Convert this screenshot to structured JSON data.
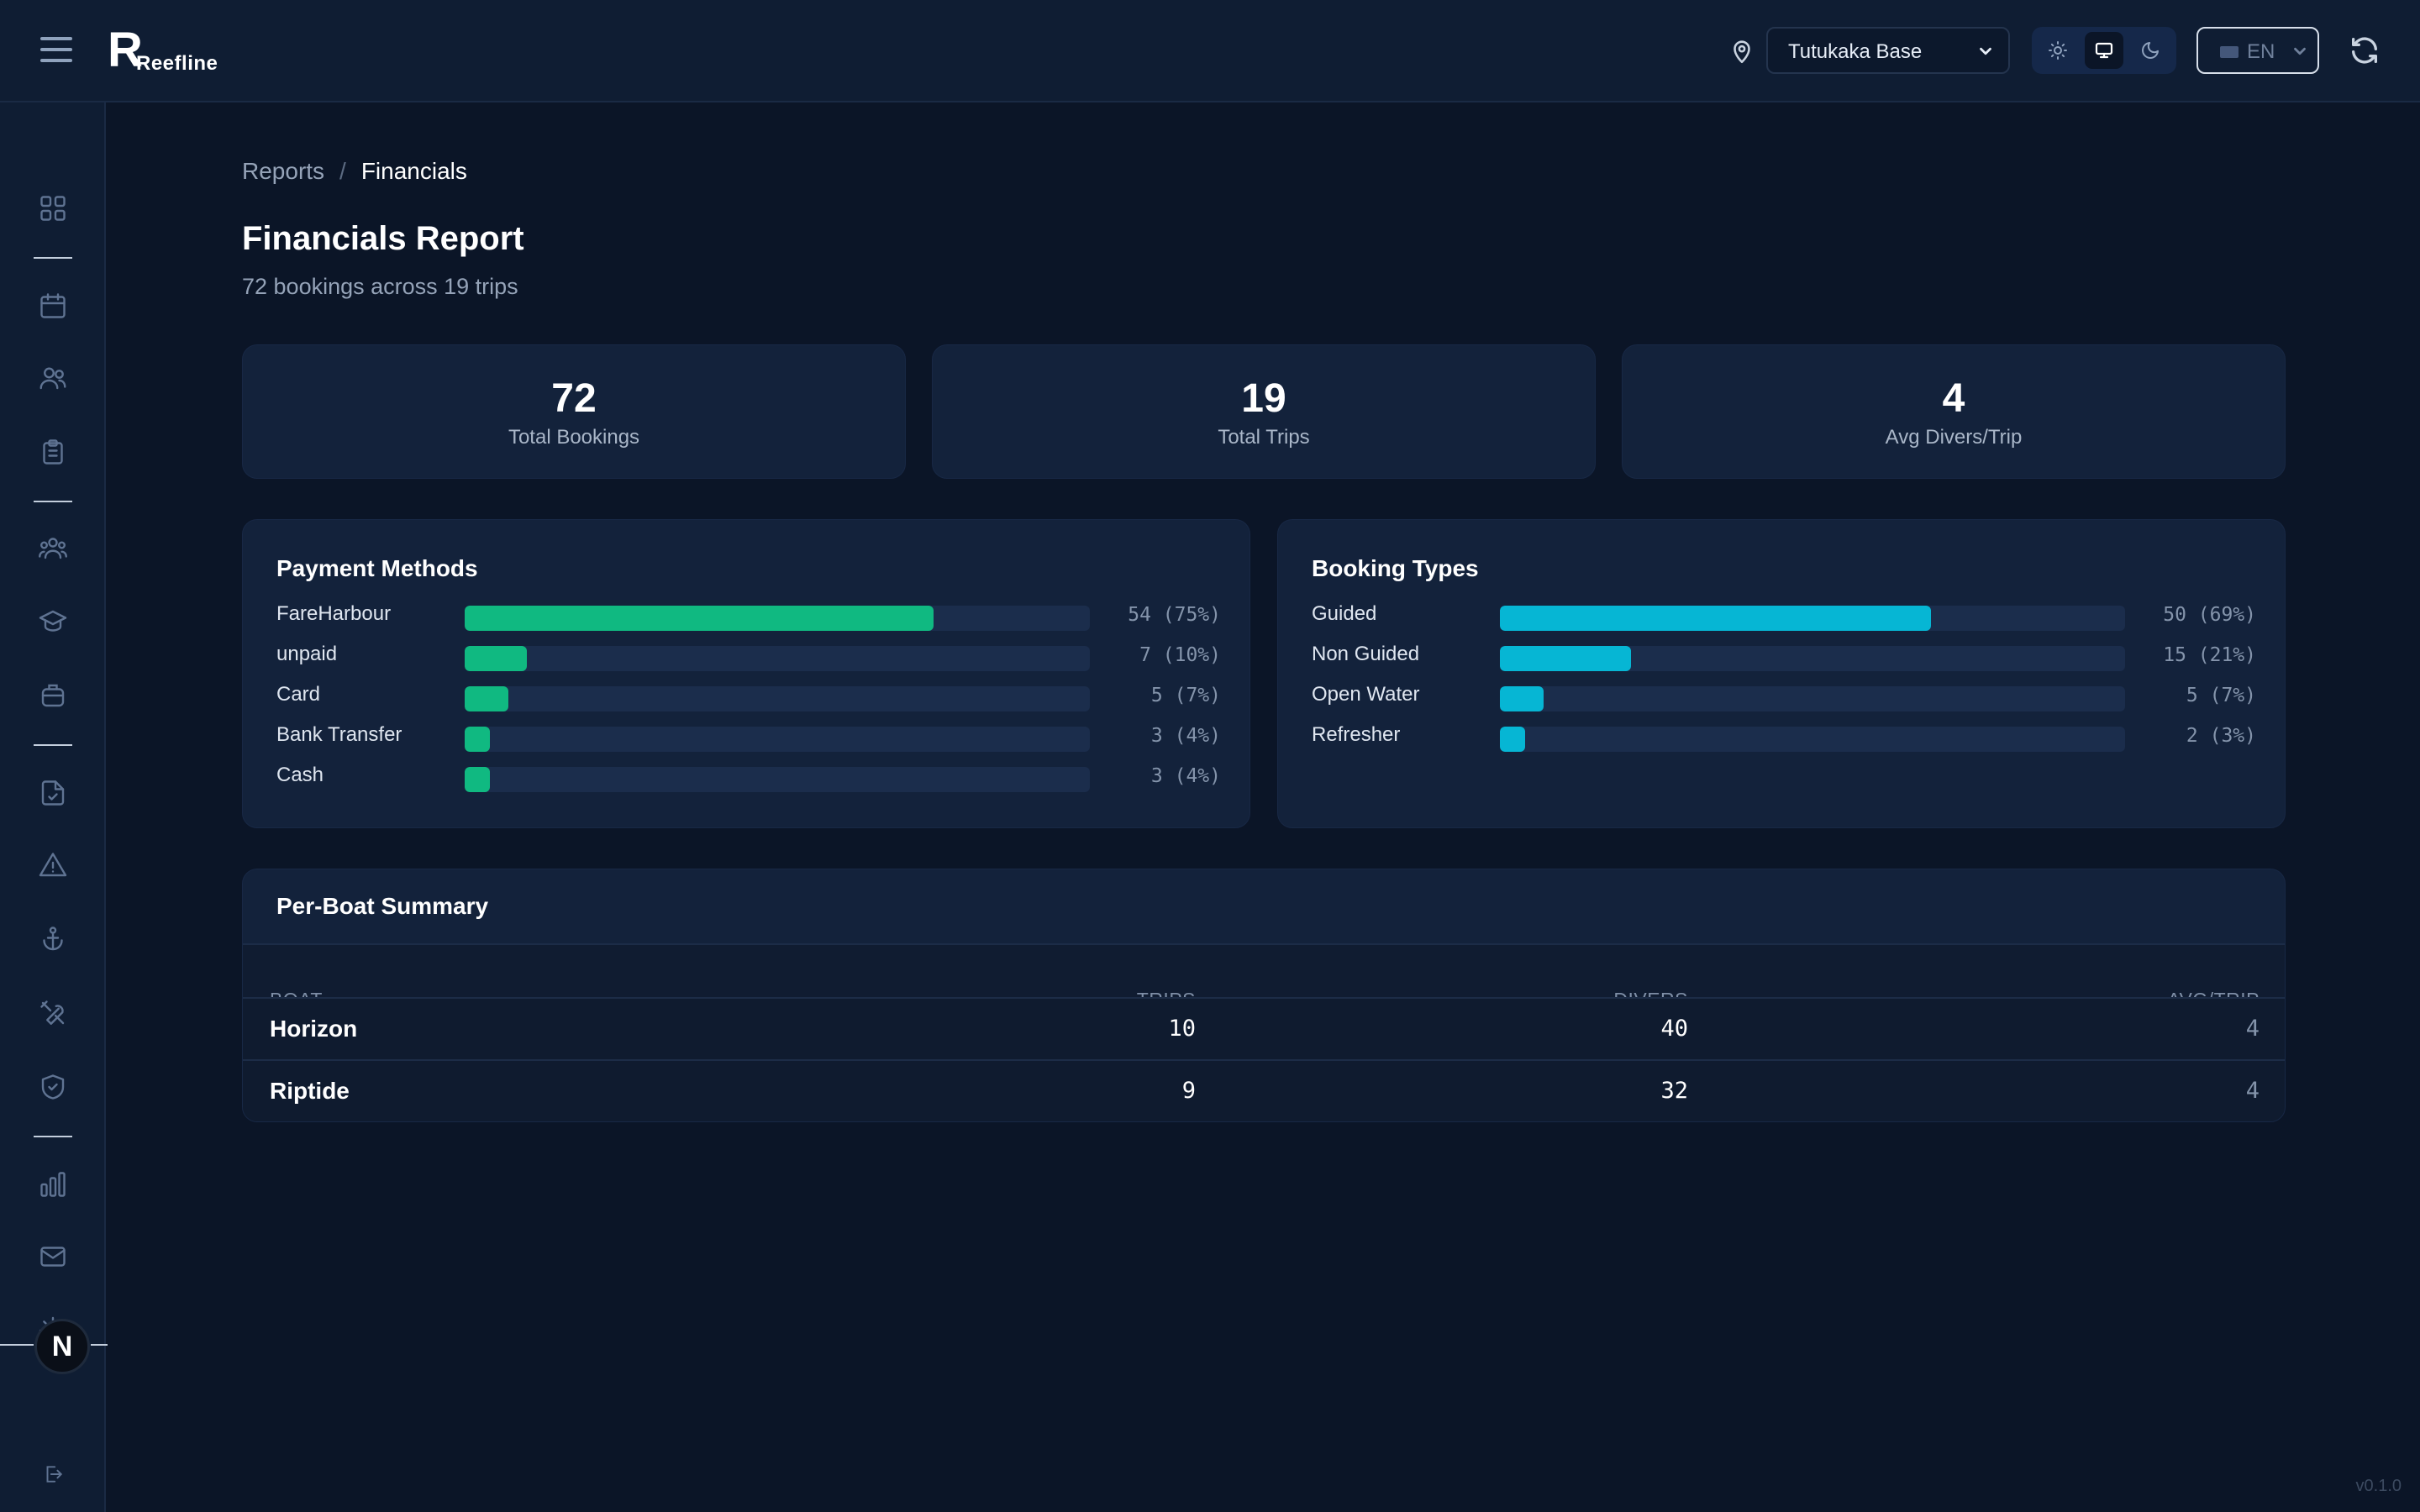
{
  "header": {
    "logo_text": "Reefline",
    "location": "Tutukaka Base",
    "language": "EN",
    "theme_options": [
      "light",
      "system",
      "dark"
    ],
    "active_theme": "system"
  },
  "sidebar": {
    "icons": [
      "dashboard-icon",
      "calendar-icon",
      "customers-icon",
      "clipboard-icon",
      "staff-icon",
      "courses-icon",
      "equipment-icon",
      "waiver-icon",
      "incident-icon",
      "boat-icon",
      "maintenance-icon",
      "safety-icon",
      "reports-icon",
      "mail-icon",
      "settings-icon"
    ],
    "avatar_letter": "N"
  },
  "breadcrumb": {
    "parent": "Reports",
    "separator": "/",
    "current": "Financials"
  },
  "page": {
    "title": "Financials Report",
    "subtitle": "72 bookings across 19 trips"
  },
  "stats": [
    {
      "value": "72",
      "label": "Total Bookings"
    },
    {
      "value": "19",
      "label": "Total Trips"
    },
    {
      "value": "4",
      "label": "Avg Divers/Trip"
    }
  ],
  "payment_methods": {
    "title": "Payment Methods",
    "color": "#10b981",
    "items": [
      {
        "label": "FareHarbour",
        "value": "54 (75%)",
        "fraction": 0.75
      },
      {
        "label": "unpaid",
        "value": "7 (10%)",
        "fraction": 0.1
      },
      {
        "label": "Card",
        "value": "5 (7%)",
        "fraction": 0.07
      },
      {
        "label": "Bank Transfer",
        "value": "3 (4%)",
        "fraction": 0.04
      },
      {
        "label": "Cash",
        "value": "3 (4%)",
        "fraction": 0.04
      }
    ]
  },
  "booking_types": {
    "title": "Booking Types",
    "color": "#06b6d4",
    "items": [
      {
        "label": "Guided",
        "value": "50 (69%)",
        "fraction": 0.69
      },
      {
        "label": "Non Guided",
        "value": "15 (21%)",
        "fraction": 0.21
      },
      {
        "label": "Open Water",
        "value": "5 (7%)",
        "fraction": 0.07
      },
      {
        "label": "Refresher",
        "value": "2 (3%)",
        "fraction": 0.03
      }
    ]
  },
  "boat_summary": {
    "title": "Per-Boat Summary",
    "columns": [
      "BOAT",
      "TRIPS",
      "DIVERS",
      "AVG/TRIP"
    ],
    "rows": [
      {
        "boat": "Horizon",
        "trips": "10",
        "divers": "40",
        "avg": "4"
      },
      {
        "boat": "Riptide",
        "trips": "9",
        "divers": "32",
        "avg": "4"
      }
    ]
  },
  "footer": {
    "version": "v0.1.0"
  }
}
